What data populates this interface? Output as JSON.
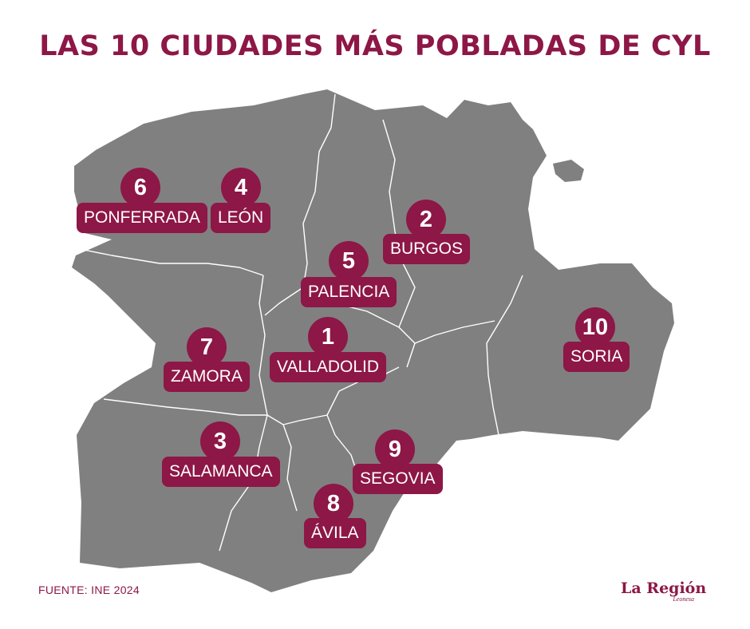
{
  "title": "LAS 10 CIUDADES MÁS POBLADAS DE CYL",
  "source": "FUENTE: INE 2024",
  "logo": {
    "name": "La Región",
    "sub": "Leonesa"
  },
  "colors": {
    "accent": "#8d1746",
    "map_fill": "#808080",
    "border": "#ffffff",
    "background": "#ffffff"
  },
  "cities": [
    {
      "rank": "1",
      "name": "VALLADOLID"
    },
    {
      "rank": "2",
      "name": "BURGOS"
    },
    {
      "rank": "3",
      "name": "SALAMANCA"
    },
    {
      "rank": "4",
      "name": "LEÓN"
    },
    {
      "rank": "5",
      "name": "PALENCIA"
    },
    {
      "rank": "6",
      "name": "PONFERRADA"
    },
    {
      "rank": "7",
      "name": "ZAMORA"
    },
    {
      "rank": "8",
      "name": "ÁVILA"
    },
    {
      "rank": "9",
      "name": "SEGOVIA"
    },
    {
      "rank": "10",
      "name": "SORIA"
    }
  ]
}
